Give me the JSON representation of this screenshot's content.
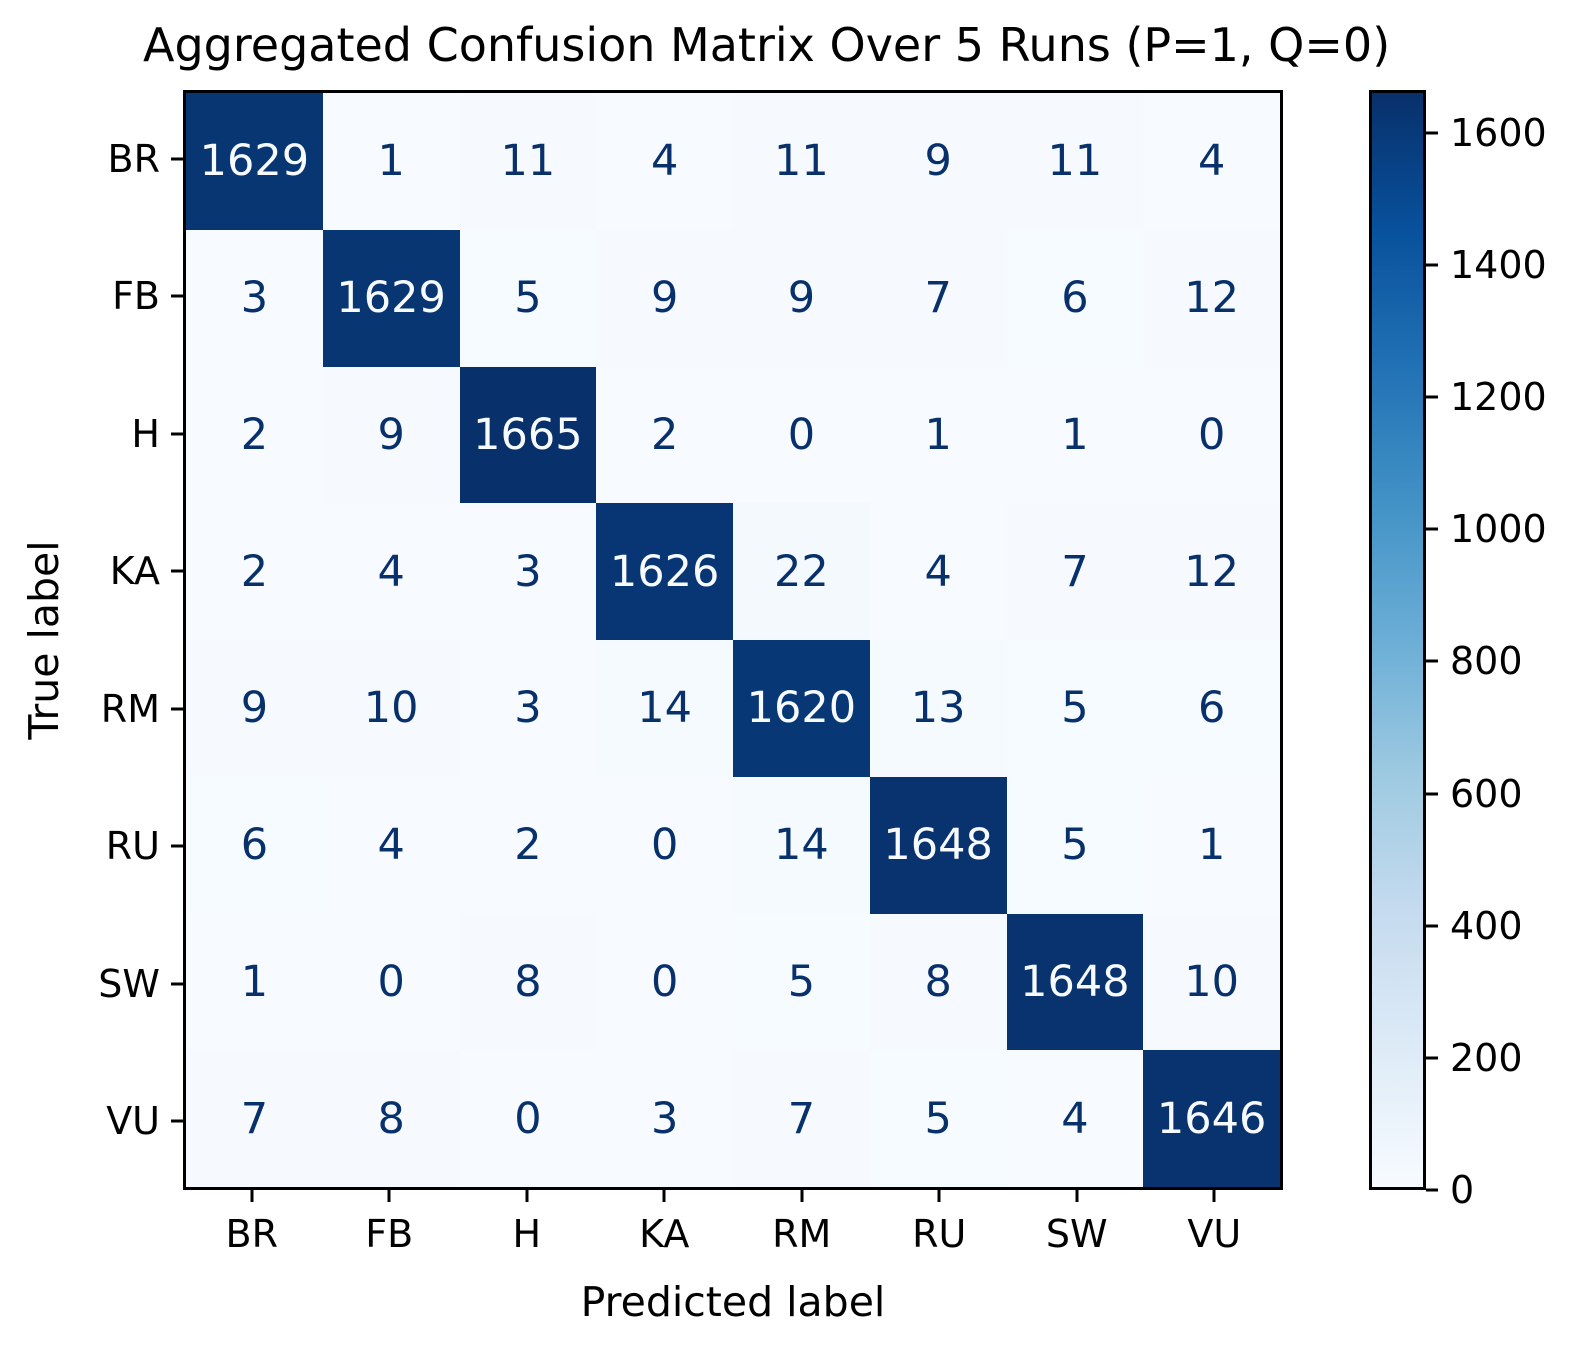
{
  "chart_data": {
    "type": "heatmap",
    "title": "Aggregated Confusion Matrix Over 5 Runs (P=1, Q=0)",
    "xlabel": "Predicted label",
    "ylabel": "True label",
    "x_tick_labels": [
      "BR",
      "FB",
      "H",
      "KA",
      "RM",
      "RU",
      "SW",
      "VU"
    ],
    "y_tick_labels": [
      "BR",
      "FB",
      "H",
      "KA",
      "RM",
      "RU",
      "SW",
      "VU"
    ],
    "matrix": [
      [
        1629,
        1,
        11,
        4,
        11,
        9,
        11,
        4
      ],
      [
        3,
        1629,
        5,
        9,
        9,
        7,
        6,
        12
      ],
      [
        2,
        9,
        1665,
        2,
        0,
        1,
        1,
        0
      ],
      [
        2,
        4,
        3,
        1626,
        22,
        4,
        7,
        12
      ],
      [
        9,
        10,
        3,
        14,
        1620,
        13,
        5,
        6
      ],
      [
        6,
        4,
        2,
        0,
        14,
        1648,
        5,
        1
      ],
      [
        1,
        0,
        8,
        0,
        5,
        8,
        1648,
        10
      ],
      [
        7,
        8,
        0,
        3,
        7,
        5,
        4,
        1646
      ]
    ],
    "vmin": 0,
    "vmax": 1665,
    "colorbar_ticks": [
      0,
      200,
      400,
      600,
      800,
      1000,
      1200,
      1400,
      1600
    ],
    "legend_position": "right-colorbar",
    "grid": false,
    "colormap": {
      "name": "Blues",
      "stops": [
        "#f7fbff",
        "#deebf7",
        "#c6dbef",
        "#9ecae1",
        "#6baed6",
        "#4292c6",
        "#2171b5",
        "#08519c",
        "#08306b"
      ]
    },
    "cell_text_colors": {
      "light": "#f7fbff",
      "dark": "#08306b"
    }
  }
}
